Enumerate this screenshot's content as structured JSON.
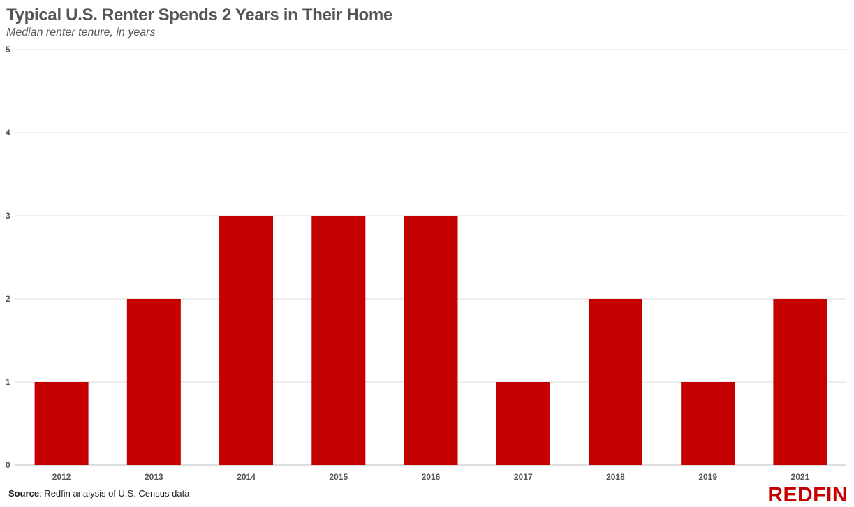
{
  "title": "Typical U.S. Renter Spends 2 Years in Their Home",
  "subtitle": "Median renter tenure, in years",
  "source": {
    "label": "Source",
    "text": ": Redfin analysis of U.S. Census data"
  },
  "brand": {
    "name": "REDFIN",
    "color": "#c40000"
  },
  "chart_data": {
    "type": "bar",
    "categories": [
      "2012",
      "2013",
      "2014",
      "2015",
      "2016",
      "2017",
      "2018",
      "2019",
      "2021"
    ],
    "values": [
      1,
      2,
      3,
      3,
      3,
      1,
      2,
      1,
      2
    ],
    "ylim": [
      0,
      5
    ],
    "yticks": [
      0,
      1,
      2,
      3,
      4,
      5
    ],
    "grid": true,
    "bar_color": "#c40000",
    "legend": false
  }
}
